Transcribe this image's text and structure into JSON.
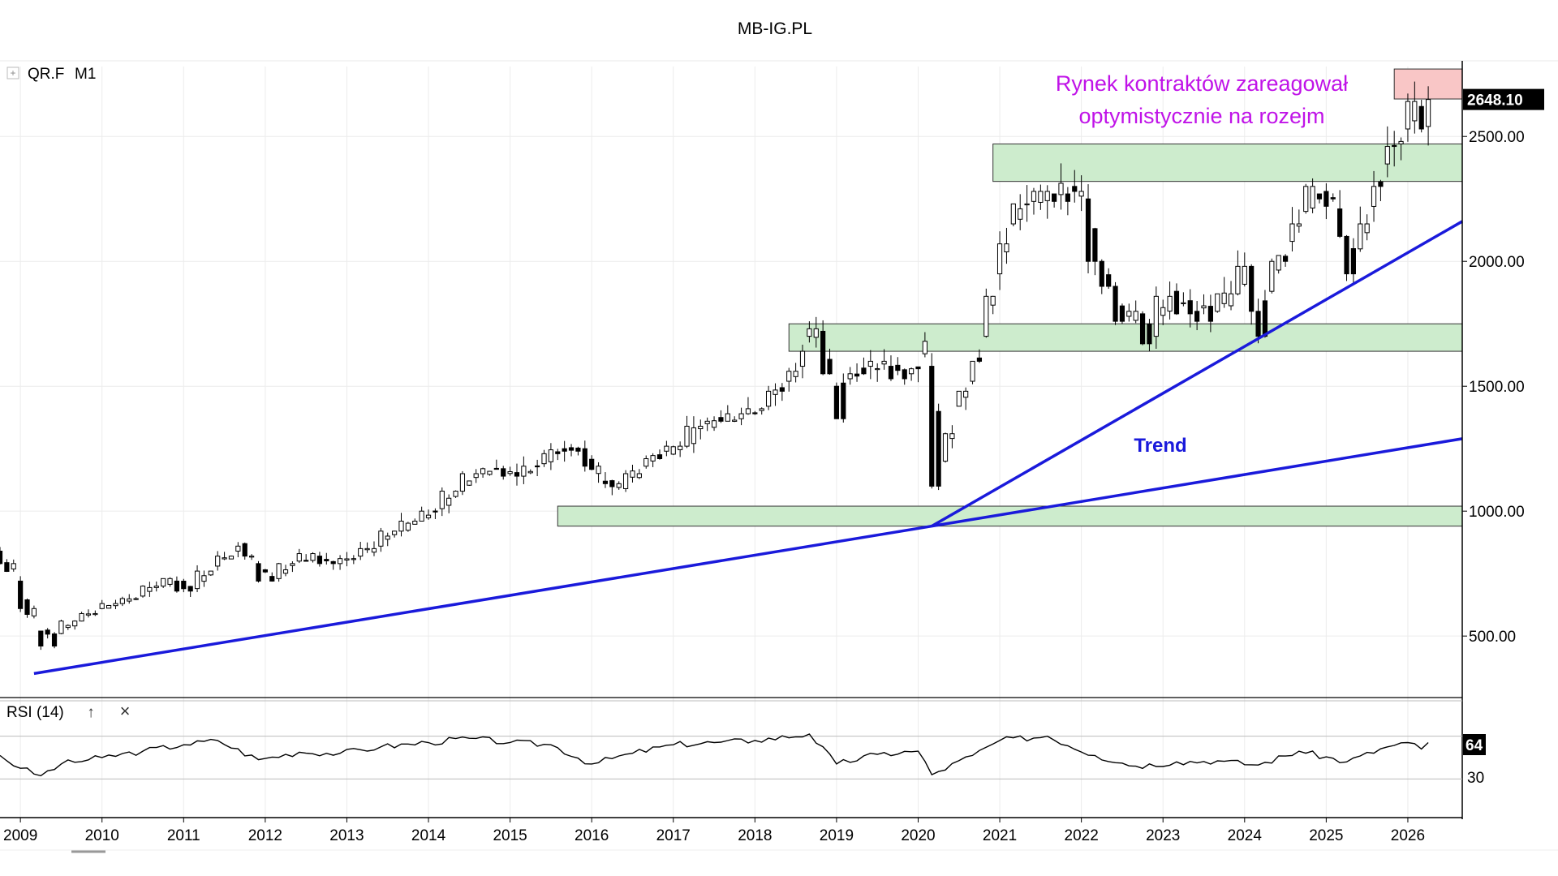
{
  "header": {
    "title": "MB-IG.PL"
  },
  "instrument": {
    "symbol": "QR.F",
    "timeframe": "M1",
    "expand_label": "+"
  },
  "annotations": {
    "headline_line1": "Rynek kontraktów zareagował",
    "headline_line2": "optymistycznie na rozejm",
    "trend_label": "Trend",
    "headline_color": "#c013e8",
    "trend_color": "#1a1adb"
  },
  "price_badge": {
    "value": "2648.10",
    "price": 2648.1
  },
  "rsi": {
    "label": "RSI (14)",
    "up_icon": "↑",
    "close_icon": "×",
    "value_badge": "64",
    "levels": [
      70,
      30
    ],
    "level_label": "30"
  },
  "colors": {
    "zone_fill": "#cdeccd",
    "zone_fill_pink": "#f9c6c6",
    "trend_line": "#1a1adb",
    "candle_border": "#000000"
  },
  "chart_data": {
    "type": "candlestick",
    "y_axis": {
      "ticks": [
        500,
        1000,
        1500,
        2000,
        2500
      ],
      "tick_labels": [
        "500.00",
        "1000.00",
        "1500.00",
        "2000.00",
        "2500.00"
      ],
      "ylim": [
        270,
        2780
      ]
    },
    "x_axis": {
      "ticks": [
        "2009",
        "2010",
        "2011",
        "2012",
        "2013",
        "2014",
        "2015",
        "2016",
        "2017",
        "2018",
        "2019",
        "2020",
        "2021",
        "2022",
        "2023",
        "2024",
        "2025",
        "2026"
      ],
      "range": [
        "2008-10",
        "2026-09"
      ]
    },
    "series": [
      {
        "points": [
          [
            "2008-10",
            840,
            790
          ],
          [
            "2009-01",
            720,
            610
          ],
          [
            "2009-04",
            520,
            460
          ],
          [
            "2009-07",
            510,
            560
          ],
          [
            "2009-10",
            560,
            590
          ],
          [
            "2010-01",
            610,
            630
          ],
          [
            "2010-04",
            630,
            650
          ],
          [
            "2010-07",
            660,
            700
          ],
          [
            "2010-10",
            700,
            730
          ],
          [
            "2010-12",
            720,
            680
          ],
          [
            "2011-03",
            690,
            760
          ],
          [
            "2011-06",
            780,
            820
          ],
          [
            "2011-09",
            840,
            860
          ],
          [
            "2011-10",
            870,
            820
          ],
          [
            "2011-12",
            790,
            720
          ],
          [
            "2012-03",
            730,
            790
          ],
          [
            "2012-06",
            800,
            830
          ],
          [
            "2012-09",
            820,
            790
          ],
          [
            "2012-12",
            790,
            810
          ],
          [
            "2013-03",
            820,
            850
          ],
          [
            "2013-06",
            860,
            920
          ],
          [
            "2013-09",
            920,
            960
          ],
          [
            "2013-12",
            960,
            1000
          ],
          [
            "2014-03",
            1010,
            1080
          ],
          [
            "2014-06",
            1080,
            1150
          ],
          [
            "2014-09",
            1150,
            1170
          ],
          [
            "2014-12",
            1170,
            1140
          ],
          [
            "2015-03",
            1140,
            1180
          ],
          [
            "2015-06",
            1190,
            1230
          ],
          [
            "2015-09",
            1250,
            1240
          ],
          [
            "2015-12",
            1250,
            1180
          ],
          [
            "2016-03",
            1120,
            1110
          ],
          [
            "2016-06",
            1090,
            1150
          ],
          [
            "2016-09",
            1180,
            1210
          ],
          [
            "2016-12",
            1240,
            1260
          ],
          [
            "2017-03",
            1260,
            1340
          ],
          [
            "2017-06",
            1350,
            1360
          ],
          [
            "2017-09",
            1360,
            1390
          ],
          [
            "2017-12",
            1390,
            1410
          ],
          [
            "2018-03",
            1420,
            1480
          ],
          [
            "2018-06",
            1520,
            1560
          ],
          [
            "2018-08",
            1580,
            1640
          ],
          [
            "2018-09",
            1700,
            1730
          ],
          [
            "2018-11",
            1720,
            1550
          ],
          [
            "2019-01",
            1500,
            1370
          ],
          [
            "2019-03",
            1530,
            1550
          ],
          [
            "2019-06",
            1580,
            1600
          ],
          [
            "2019-09",
            1580,
            1530
          ],
          [
            "2019-12",
            1550,
            1570
          ],
          [
            "2020-02",
            1630,
            1680
          ],
          [
            "2020-03",
            1580,
            1100
          ],
          [
            "2020-05",
            1200,
            1310
          ],
          [
            "2020-07",
            1420,
            1480
          ],
          [
            "2020-09",
            1520,
            1600
          ],
          [
            "2020-11",
            1700,
            1860
          ],
          [
            "2021-01",
            1950,
            2070
          ],
          [
            "2021-03",
            2150,
            2230
          ],
          [
            "2021-06",
            2240,
            2280
          ],
          [
            "2021-09",
            2270,
            2240
          ],
          [
            "2021-12",
            2300,
            2280
          ],
          [
            "2022-02",
            2250,
            2000
          ],
          [
            "2022-04",
            2000,
            1900
          ],
          [
            "2022-06",
            1900,
            1760
          ],
          [
            "2022-08",
            1780,
            1800
          ],
          [
            "2022-10",
            1790,
            1670
          ],
          [
            "2022-12",
            1700,
            1860
          ],
          [
            "2023-03",
            1880,
            1790
          ],
          [
            "2023-06",
            1800,
            1760
          ],
          [
            "2023-09",
            1800,
            1870
          ],
          [
            "2023-12",
            1870,
            1980
          ],
          [
            "2024-02",
            1980,
            1800
          ],
          [
            "2024-03",
            1800,
            1700
          ],
          [
            "2024-05",
            1880,
            2000
          ],
          [
            "2024-08",
            2080,
            2150
          ],
          [
            "2024-10",
            2200,
            2300
          ],
          [
            "2024-12",
            2270,
            2250
          ],
          [
            "2025-03",
            2210,
            2100
          ],
          [
            "2025-04",
            2100,
            1950
          ],
          [
            "2025-06",
            2050,
            2150
          ],
          [
            "2025-08",
            2220,
            2300
          ],
          [
            "2025-10",
            2390,
            2460
          ],
          [
            "2025-12",
            2470,
            2480
          ],
          [
            "2026-01",
            2530,
            2640
          ],
          [
            "2026-03",
            2620,
            2530
          ],
          [
            "2026-04",
            2540,
            2648.1
          ]
        ]
      }
    ],
    "zones": [
      {
        "from": "2015-08",
        "to": "2026-09",
        "low": 940,
        "high": 1020,
        "fill": "#cdeccd"
      },
      {
        "from": "2018-06",
        "to": "2026-09",
        "low": 1640,
        "high": 1750,
        "fill": "#cdeccd"
      },
      {
        "from": "2020-12",
        "to": "2026-09",
        "low": 2320,
        "high": 2470,
        "fill": "#cdeccd"
      },
      {
        "from": "2025-11",
        "to": "2026-09",
        "low": 2650,
        "high": 2770,
        "fill": "#f9c6c6"
      }
    ],
    "trendlines": [
      {
        "from": [
          "2009-03",
          350
        ],
        "to": [
          "2020-03",
          940
        ]
      },
      {
        "from": [
          "2020-03",
          940
        ],
        "to": [
          "2026-09",
          1290
        ]
      },
      {
        "from": [
          "2020-03",
          940
        ],
        "to": [
          "2026-09",
          2160
        ]
      }
    ],
    "rsi_series": [
      [
        "2008-10",
        52
      ],
      [
        "2009-01",
        40
      ],
      [
        "2009-04",
        33
      ],
      [
        "2009-07",
        44
      ],
      [
        "2010-01",
        50
      ],
      [
        "2010-07",
        56
      ],
      [
        "2011-01",
        62
      ],
      [
        "2011-06",
        66
      ],
      [
        "2011-12",
        48
      ],
      [
        "2012-06",
        55
      ],
      [
        "2012-12",
        54
      ],
      [
        "2013-06",
        60
      ],
      [
        "2014-01",
        64
      ],
      [
        "2014-07",
        68
      ],
      [
        "2015-01",
        64
      ],
      [
        "2015-07",
        62
      ],
      [
        "2016-01",
        44
      ],
      [
        "2016-07",
        54
      ],
      [
        "2017-01",
        62
      ],
      [
        "2017-07",
        64
      ],
      [
        "2018-01",
        66
      ],
      [
        "2018-09",
        72
      ],
      [
        "2019-01",
        44
      ],
      [
        "2019-07",
        53
      ],
      [
        "2020-01",
        56
      ],
      [
        "2020-03",
        34
      ],
      [
        "2020-09",
        52
      ],
      [
        "2021-01",
        66
      ],
      [
        "2021-08",
        70
      ],
      [
        "2022-03",
        52
      ],
      [
        "2022-09",
        42
      ],
      [
        "2023-03",
        46
      ],
      [
        "2023-09",
        47
      ],
      [
        "2024-03",
        43
      ],
      [
        "2024-09",
        56
      ],
      [
        "2025-04",
        46
      ],
      [
        "2025-10",
        60
      ],
      [
        "2026-01",
        64
      ],
      [
        "2026-03",
        58
      ],
      [
        "2026-04",
        64
      ]
    ]
  }
}
